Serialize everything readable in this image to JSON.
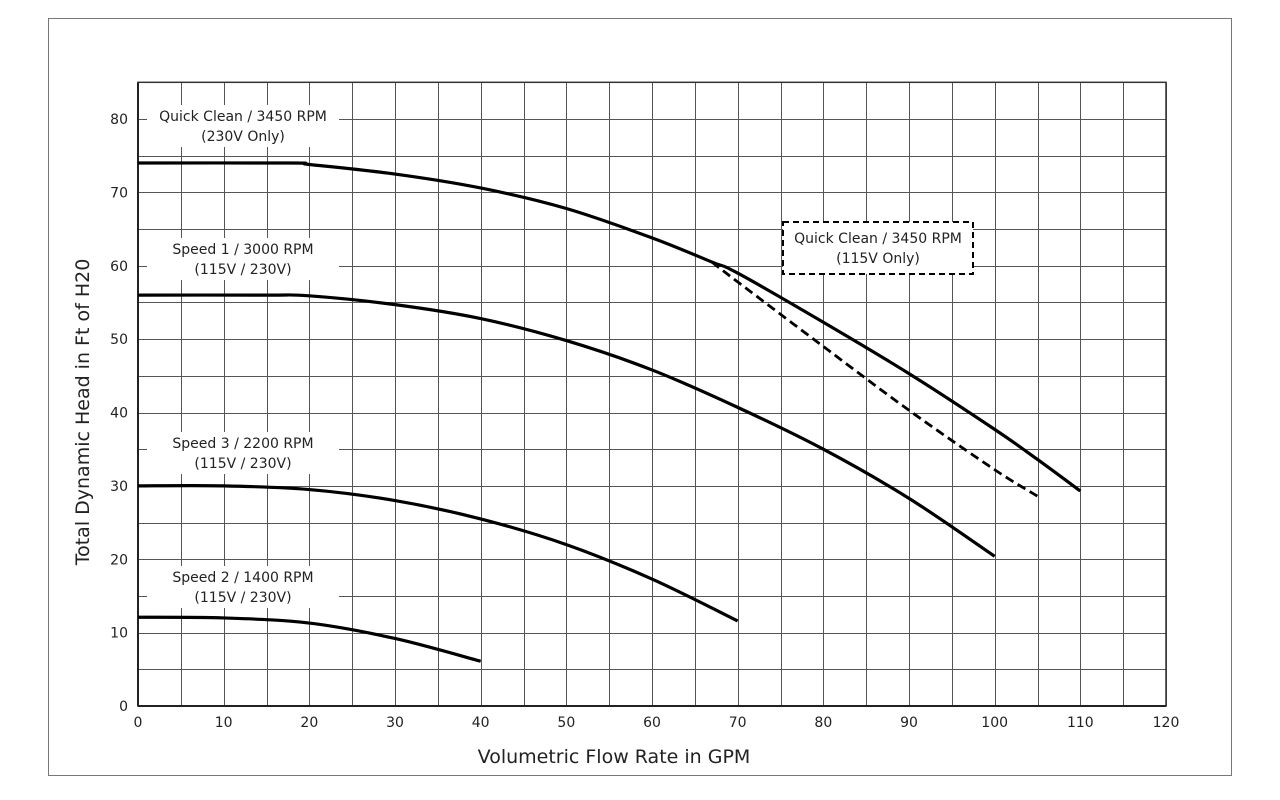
{
  "chart_data": {
    "type": "line",
    "title": "",
    "xlabel": "Volumetric Flow Rate in GPM",
    "ylabel": "Total Dynamic Head in Ft of H20",
    "xlim": [
      0,
      120
    ],
    "ylim": [
      0,
      85
    ],
    "x_ticks": [
      0,
      10,
      20,
      30,
      40,
      50,
      60,
      70,
      80,
      90,
      100,
      110,
      120
    ],
    "y_ticks": [
      0,
      10,
      20,
      30,
      40,
      50,
      60,
      70,
      80
    ],
    "grid": true,
    "legend": "none",
    "series": [
      {
        "name": "Quick Clean / 3450 RPM (230V Only)",
        "label_lines": [
          "Quick Clean / 3450 RPM",
          "(230V Only)"
        ],
        "style": "solid",
        "x": [
          0,
          18,
          20,
          30,
          40,
          50,
          60,
          67,
          70,
          80,
          90,
          100,
          105,
          110
        ],
        "y": [
          74,
          74,
          73.8,
          72.5,
          70.6,
          67.8,
          63.8,
          60.5,
          59,
          52.3,
          45.3,
          37.7,
          33.6,
          29.3
        ]
      },
      {
        "name": "Quick Clean / 3450 RPM (115V Only)",
        "label_lines": [
          "Quick Clean / 3450 RPM",
          "(115V Only)"
        ],
        "style": "dashed",
        "x": [
          67,
          70,
          80,
          90,
          100,
          105
        ],
        "y": [
          60.5,
          57.8,
          49,
          40.3,
          32.2,
          28.6
        ]
      },
      {
        "name": "Speed 1 / 3000 RPM (115V / 230V)",
        "label_lines": [
          "Speed 1 / 3000 RPM",
          "(115V / 230V)"
        ],
        "style": "solid",
        "x": [
          0,
          15,
          20,
          30,
          40,
          50,
          60,
          70,
          80,
          90,
          100
        ],
        "y": [
          56,
          56,
          55.9,
          54.7,
          52.8,
          49.8,
          45.8,
          40.7,
          35,
          28.3,
          20.4
        ]
      },
      {
        "name": "Speed 3 / 2200 RPM (115V / 230V)",
        "label_lines": [
          "Speed 3 / 2200 RPM",
          "(115V / 230V)"
        ],
        "style": "solid",
        "x": [
          0,
          10,
          20,
          30,
          40,
          50,
          60,
          70
        ],
        "y": [
          30,
          30,
          29.5,
          28,
          25.5,
          22,
          17.3,
          11.6
        ]
      },
      {
        "name": "Speed 2 / 1400 RPM (115V / 230V)",
        "label_lines": [
          "Speed 2 / 1400 RPM",
          "(115V / 230V)"
        ],
        "style": "solid",
        "x": [
          0,
          10,
          20,
          30,
          40
        ],
        "y": [
          12.1,
          12,
          11.3,
          9.2,
          6.1
        ]
      }
    ]
  }
}
